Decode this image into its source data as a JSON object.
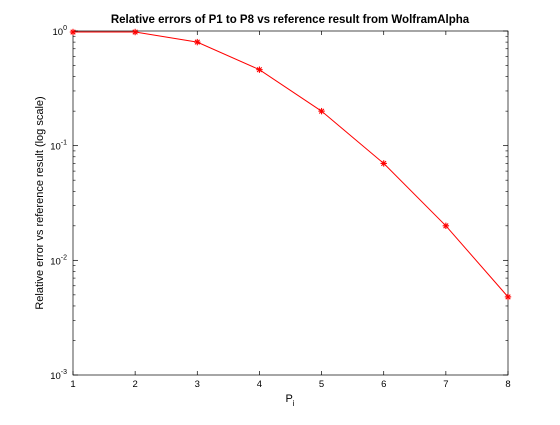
{
  "chart_data": {
    "type": "line",
    "title": "Relative errors of P1 to P8 vs reference result from WolframAlpha",
    "xlabel": "P",
    "xlabel_subscript": "i",
    "ylabel": "Relative error vs reference result (log scale)",
    "x": [
      1,
      2,
      3,
      4,
      5,
      6,
      7,
      8
    ],
    "xticks": [
      "1",
      "2",
      "3",
      "4",
      "5",
      "6",
      "7",
      "8"
    ],
    "xlim": [
      1,
      8
    ],
    "yscale": "log",
    "ylim": [
      0.001,
      1
    ],
    "yticks": [
      {
        "value": 1,
        "base": "10",
        "exp": "0"
      },
      {
        "value": 0.1,
        "base": "10",
        "exp": "-1"
      },
      {
        "value": 0.01,
        "base": "10",
        "exp": "-2"
      },
      {
        "value": 0.001,
        "base": "10",
        "exp": "-3"
      }
    ],
    "series": [
      {
        "name": "",
        "values": [
          0.98,
          0.98,
          0.8,
          0.46,
          0.2,
          0.07,
          0.02,
          0.0048
        ],
        "color": "#ff0000",
        "marker": "asterisk"
      }
    ],
    "grid": false,
    "legend": "none"
  }
}
